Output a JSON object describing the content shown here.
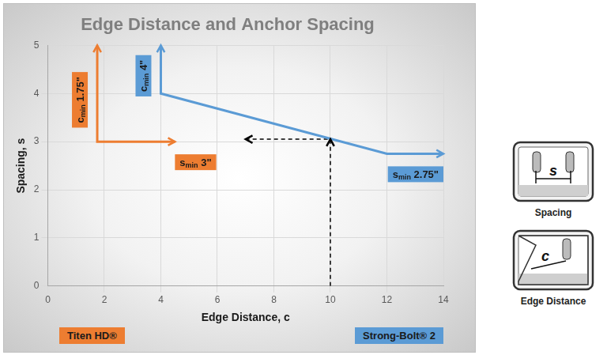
{
  "chart_data": {
    "type": "line",
    "title": "Edge Distance and Anchor Spacing",
    "x_label": "Edge Distance, c",
    "y_label": "Spacing, s",
    "xlim": [
      0,
      14
    ],
    "xticks": [
      0,
      2,
      4,
      6,
      8,
      10,
      12,
      14
    ],
    "ylim": [
      0,
      5
    ],
    "yticks": [
      0,
      1,
      2,
      3,
      4,
      5
    ],
    "grid": true,
    "legend": "bottom",
    "series": [
      {
        "name": "Titen HD®",
        "color": "#ed7d31",
        "line_style": "solid",
        "marker": "none",
        "x": [
          1.75,
          1.75,
          4.5
        ],
        "values": [
          5,
          3,
          3
        ],
        "annotations": [
          {
            "label": "c",
            "subscript": "min",
            "text": "1.75\""
          },
          {
            "label": "s",
            "subscript": "min",
            "text": "3\""
          }
        ]
      },
      {
        "name": "Strong-Bolt® 2",
        "color": "#5b9bd5",
        "line_style": "solid",
        "marker": "none",
        "x": [
          4,
          4,
          12,
          14
        ],
        "values": [
          5,
          4,
          2.75,
          2.75
        ],
        "annotations": [
          {
            "label": "c",
            "subscript": "min",
            "text": "4\""
          },
          {
            "label": "s",
            "subscript": "min",
            "text": "2.75\""
          }
        ]
      },
      {
        "color": "#000000",
        "line_style": "dashed",
        "marker": "none",
        "x": [
          10,
          10,
          7
        ],
        "values": [
          0,
          3.05,
          3.05
        ]
      }
    ],
    "icons": [
      {
        "symbol": "s",
        "caption": "Spacing"
      },
      {
        "symbol": "c",
        "caption": "Edge Distance"
      }
    ]
  }
}
